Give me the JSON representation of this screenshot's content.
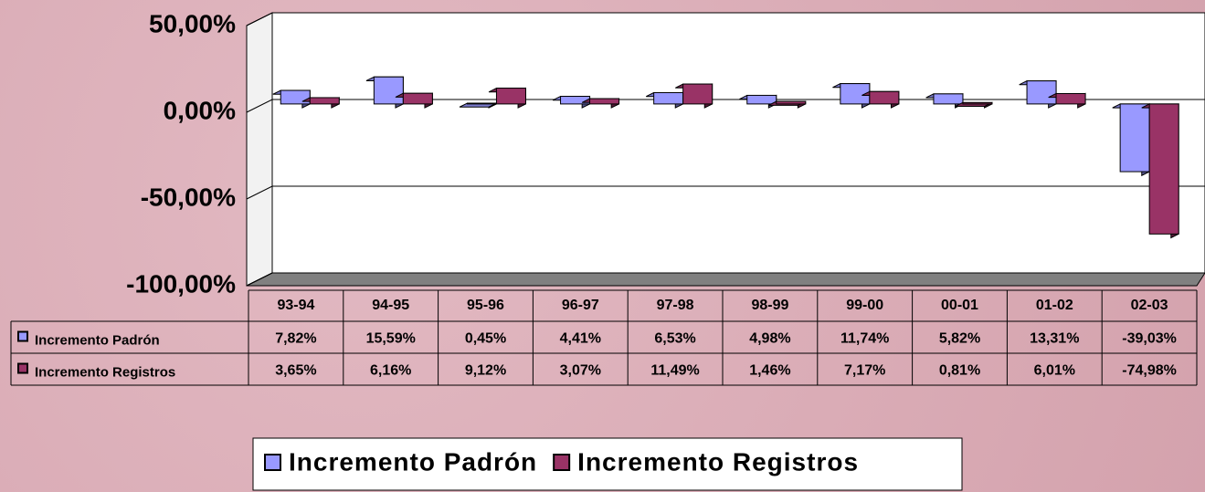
{
  "chart_data": {
    "type": "bar",
    "categories": [
      "93-94",
      "94-95",
      "95-96",
      "96-97",
      "97-98",
      "98-99",
      "99-00",
      "00-01",
      "01-02",
      "02-03"
    ],
    "series": [
      {
        "name": "Incremento Padrón",
        "color": "#9999ff",
        "values": [
          7.82,
          15.59,
          0.45,
          4.41,
          6.53,
          4.98,
          11.74,
          5.82,
          13.31,
          -39.03
        ],
        "value_labels": [
          "7,82%",
          "15,59%",
          "0,45%",
          "4,41%",
          "6,53%",
          "4,98%",
          "11,74%",
          "5,82%",
          "13,31%",
          "-39,03%"
        ]
      },
      {
        "name": "Incremento Registros",
        "color": "#993366",
        "values": [
          3.65,
          6.16,
          9.12,
          3.07,
          11.49,
          1.46,
          7.17,
          0.81,
          6.01,
          -74.98
        ],
        "value_labels": [
          "3,65%",
          "6,16%",
          "9,12%",
          "3,07%",
          "11,49%",
          "1,46%",
          "7,17%",
          "0,81%",
          "6,01%",
          "-74,98%"
        ]
      }
    ],
    "ylim": [
      -100,
      50
    ],
    "yticks": [
      {
        "value": 50,
        "label": "50,00%"
      },
      {
        "value": 0,
        "label": "0,00%"
      },
      {
        "value": -50,
        "label": "-50,00%"
      },
      {
        "value": -100,
        "label": "-100,00%"
      }
    ],
    "grid": true,
    "legend": "bottom",
    "data_table": true
  }
}
